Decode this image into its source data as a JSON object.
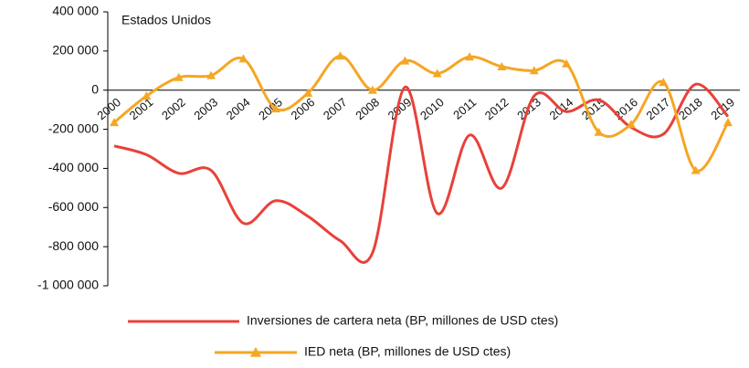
{
  "chart_data": {
    "type": "line",
    "annotation": "Estados Unidos",
    "categories": [
      "2000",
      "2001",
      "2002",
      "2003",
      "2004",
      "2005",
      "2006",
      "2007",
      "2008",
      "2009",
      "2010",
      "2011",
      "2012",
      "2013",
      "2014",
      "2015",
      "2016",
      "2017",
      "2018",
      "2019"
    ],
    "series": [
      {
        "name": "Inversiones de cartera neta (BP, millones de USD ctes)",
        "color": "#e8413a",
        "marker": false,
        "values": [
          -285000,
          -330000,
          -425000,
          -410000,
          -680000,
          -565000,
          -645000,
          -770000,
          -830000,
          15000,
          -630000,
          -230000,
          -500000,
          -30000,
          -110000,
          -50000,
          -190000,
          -225000,
          30000,
          -135000
        ]
      },
      {
        "name": "IED neta (BP, millones de USD ctes)",
        "color": "#f5a623",
        "marker": true,
        "values": [
          -165000,
          -30000,
          65000,
          75000,
          160000,
          -95000,
          -15000,
          175000,
          0,
          150000,
          85000,
          170000,
          120000,
          100000,
          135000,
          -215000,
          -175000,
          40000,
          -410000,
          -165000
        ]
      }
    ],
    "ylim": [
      -1000000,
      400000
    ],
    "yticks": [
      {
        "value": -1000000,
        "label": "-1 000 000"
      },
      {
        "value": -800000,
        "label": "-800 000"
      },
      {
        "value": -600000,
        "label": "-600 000"
      },
      {
        "value": -400000,
        "label": "-400 000"
      },
      {
        "value": -200000,
        "label": "-200 000"
      },
      0,
      {
        "value": 200000,
        "label": "200 000"
      },
      {
        "value": 400000,
        "label": "400 000"
      }
    ]
  }
}
